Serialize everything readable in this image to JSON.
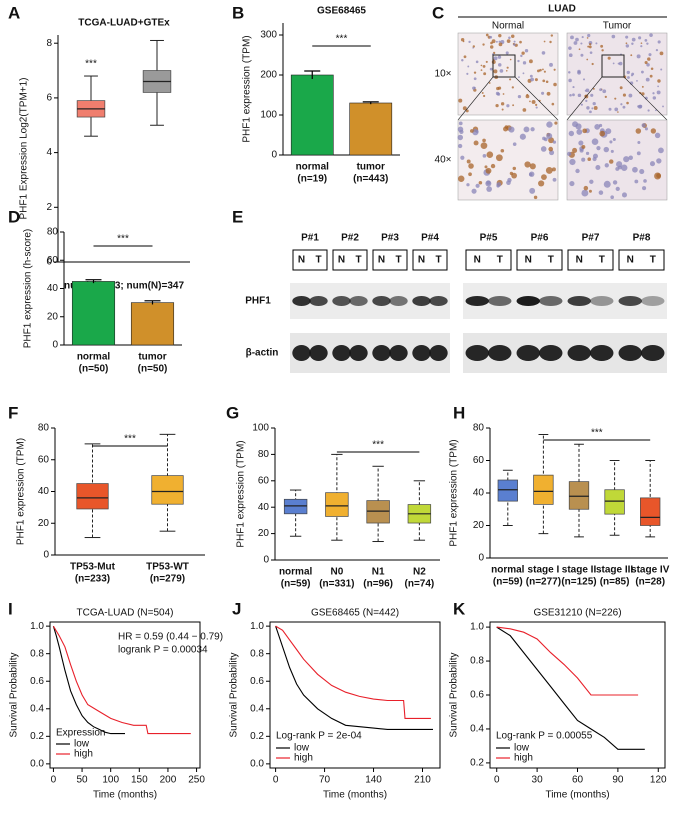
{
  "chart_data": [
    {
      "panel": "A",
      "type": "box",
      "title": "TCGA-LUAD+GTEx",
      "ylabel": "PHF1 Expression Log2(TPM+1)",
      "xlabel": "num(T)=483; num(N)=347",
      "categories": [
        null,
        null
      ],
      "boxes": [
        {
          "min": 4.6,
          "q1": 5.3,
          "median": 5.6,
          "q3": 5.9,
          "max": 6.8
        },
        {
          "min": 5.0,
          "q1": 6.2,
          "median": 6.6,
          "q3": 7.0,
          "max": 8.1
        }
      ],
      "colors": [
        "#f07e6e",
        "#9a9a9a"
      ],
      "dashed_whiskers": false,
      "ylim": [
        0,
        8.3
      ],
      "yticks": [
        0,
        2,
        4,
        6,
        8
      ],
      "significance": "***",
      "significance_span": [
        0
      ]
    },
    {
      "panel": "B",
      "type": "bar",
      "title": "GSE68465",
      "ylabel": "PHF1 expression (TPM)",
      "categories": [
        "normal",
        "tumor"
      ],
      "category_notes": [
        "(n=19)",
        "(n=443)"
      ],
      "values": [
        200,
        130
      ],
      "errors": [
        10,
        3
      ],
      "colors": [
        "#1aa84a",
        "#d0902a"
      ],
      "ylim": [
        0,
        330
      ],
      "yticks": [
        0,
        100,
        200,
        300
      ],
      "significance": "***",
      "significance_span": [
        0,
        1
      ]
    },
    {
      "panel": "D",
      "type": "bar",
      "ylabel": "PHF1 expression (h-score)",
      "categories": [
        "normal",
        "tumor"
      ],
      "category_notes": [
        "(n=50)",
        "(n=50)"
      ],
      "values": [
        45,
        30
      ],
      "errors": [
        1.2,
        1.3
      ],
      "colors": [
        "#1aa84a",
        "#d0902a"
      ],
      "ylim": [
        0,
        80
      ],
      "yticks": [
        0,
        20,
        40,
        60,
        80
      ],
      "significance": "***",
      "significance_span": [
        0,
        1
      ]
    },
    {
      "panel": "F",
      "type": "box",
      "ylabel": "PHF1 expression (TPM)",
      "categories": [
        "TP53-Mut",
        "TP53-WT"
      ],
      "category_notes": [
        "(n=233)",
        "(n=279)"
      ],
      "boxes": [
        {
          "min": 11,
          "q1": 29,
          "median": 36,
          "q3": 45,
          "max": 70
        },
        {
          "min": 15,
          "q1": 32,
          "median": 40,
          "q3": 50,
          "max": 76
        }
      ],
      "colors": [
        "#e8562a",
        "#f0b030"
      ],
      "dashed_whiskers": true,
      "ylim": [
        0,
        80
      ],
      "yticks": [
        0,
        20,
        40,
        60,
        80
      ],
      "significance": "***",
      "significance_span": [
        0,
        1
      ]
    },
    {
      "panel": "G",
      "type": "box",
      "ylabel": "PHF1 expression (TPM)",
      "categories": [
        "normal",
        "N0",
        "N1",
        "N2"
      ],
      "category_notes": [
        "(n=59)",
        "(n=331)",
        "(n=96)",
        "(n=74)"
      ],
      "boxes": [
        {
          "min": 18,
          "q1": 35,
          "median": 41,
          "q3": 46,
          "max": 53
        },
        {
          "min": 15,
          "q1": 33,
          "median": 41,
          "q3": 51,
          "max": 80
        },
        {
          "min": 14,
          "q1": 28,
          "median": 37,
          "q3": 45,
          "max": 71
        },
        {
          "min": 15,
          "q1": 28,
          "median": 35,
          "q3": 42,
          "max": 60
        }
      ],
      "colors": [
        "#5a7fd0",
        "#f0b030",
        "#b99050",
        "#c0d838"
      ],
      "dashed_whiskers": true,
      "ylim": [
        0,
        100
      ],
      "yticks": [
        0,
        20,
        40,
        60,
        80,
        100
      ],
      "significance": "***",
      "significance_span": [
        1,
        3
      ]
    },
    {
      "panel": "H",
      "type": "box",
      "ylabel": "PHF1 expression (TPM)",
      "categories": [
        "normal",
        "stage I",
        "stage II",
        "stage III",
        "stage IV"
      ],
      "category_notes": [
        "(n=59)",
        "(n=277)",
        "(n=125)",
        "(n=85)",
        "(n=28)"
      ],
      "boxes": [
        {
          "min": 20,
          "q1": 35,
          "median": 42,
          "q3": 48,
          "max": 54
        },
        {
          "min": 15,
          "q1": 33,
          "median": 41,
          "q3": 51,
          "max": 76
        },
        {
          "min": 13,
          "q1": 30,
          "median": 38,
          "q3": 47,
          "max": 70
        },
        {
          "min": 14,
          "q1": 27,
          "median": 35,
          "q3": 42,
          "max": 60
        },
        {
          "min": 13,
          "q1": 20,
          "median": 25,
          "q3": 37,
          "max": 60
        }
      ],
      "colors": [
        "#5a7fd0",
        "#f0b030",
        "#b99050",
        "#c0d838",
        "#e8562a"
      ],
      "dashed_whiskers": true,
      "ylim": [
        0,
        80
      ],
      "yticks": [
        0,
        20,
        40,
        60,
        80
      ],
      "significance": "***",
      "significance_span": [
        1,
        4
      ]
    },
    {
      "panel": "I",
      "type": "survival",
      "title": "TCGA-LUAD (N=504)",
      "ylabel": "Survival Probability",
      "xlabel": "Time (months)",
      "legend_title": "Expression",
      "annotations": [
        "HR = 0.59 (0.44 − 0.79)",
        "logrank P = 0.00034"
      ],
      "series": [
        {
          "name": "low",
          "color": "#000000",
          "x": [
            0,
            5,
            10,
            20,
            30,
            40,
            50,
            60,
            70,
            80,
            90,
            100,
            110,
            125
          ],
          "y": [
            1,
            0.93,
            0.85,
            0.68,
            0.53,
            0.43,
            0.35,
            0.3,
            0.27,
            0.25,
            0.23,
            0.22,
            0.22,
            0.22
          ]
        },
        {
          "name": "high",
          "color": "#e8202a",
          "x": [
            0,
            10,
            20,
            30,
            40,
            50,
            60,
            80,
            100,
            120,
            140,
            162,
            165,
            240
          ],
          "y": [
            1,
            0.93,
            0.85,
            0.72,
            0.6,
            0.5,
            0.43,
            0.38,
            0.33,
            0.3,
            0.28,
            0.28,
            0.22,
            0.22
          ]
        }
      ],
      "xlim": [
        -6,
        256
      ],
      "xticks": [
        0,
        50,
        100,
        150,
        200,
        250
      ],
      "ylim": [
        -0.03,
        1.03
      ],
      "yticks": [
        {
          "value": 0,
          "label": "0.0"
        },
        0.2,
        0.4,
        0.6,
        0.8,
        {
          "value": 1,
          "label": "1.0"
        }
      ]
    },
    {
      "panel": "J",
      "type": "survival",
      "title": "GSE68465 (N=442)",
      "ylabel": "Survival Probability",
      "xlabel": "Time (months)",
      "annotations": [
        "Log-rank P = 2e-04"
      ],
      "series": [
        {
          "name": "low",
          "color": "#000000",
          "x": [
            0,
            10,
            20,
            30,
            40,
            60,
            80,
            100,
            120,
            140,
            160,
            180,
            225
          ],
          "y": [
            1,
            0.85,
            0.7,
            0.58,
            0.5,
            0.4,
            0.33,
            0.28,
            0.27,
            0.26,
            0.25,
            0.25,
            0.25
          ]
        },
        {
          "name": "high",
          "color": "#e8202a",
          "x": [
            0,
            10,
            20,
            30,
            40,
            60,
            80,
            100,
            120,
            140,
            160,
            183,
            185,
            222
          ],
          "y": [
            1,
            0.97,
            0.9,
            0.83,
            0.76,
            0.65,
            0.57,
            0.52,
            0.49,
            0.47,
            0.46,
            0.46,
            0.33,
            0.33
          ]
        }
      ],
      "xlim": [
        -8,
        235
      ],
      "xticks": [
        0,
        70,
        140,
        210
      ],
      "ylim": [
        -0.03,
        1.03
      ],
      "yticks": [
        {
          "value": 0,
          "label": "0.0"
        },
        0.2,
        0.4,
        0.6,
        0.8,
        {
          "value": 1,
          "label": "1.0"
        }
      ]
    },
    {
      "panel": "K",
      "type": "survival",
      "title": "GSE31210 (N=226)",
      "ylabel": "Survival Probability",
      "xlabel": "Time (months)",
      "annotations": [
        "Log-rank P = 0.00055"
      ],
      "series": [
        {
          "name": "low",
          "color": "#000000",
          "x": [
            0,
            10,
            20,
            30,
            40,
            50,
            60,
            70,
            80,
            90,
            110
          ],
          "y": [
            1,
            0.95,
            0.85,
            0.75,
            0.65,
            0.55,
            0.45,
            0.4,
            0.35,
            0.28,
            0.28
          ]
        },
        {
          "name": "high",
          "color": "#e8202a",
          "x": [
            0,
            10,
            20,
            30,
            40,
            50,
            60,
            70,
            105
          ],
          "y": [
            1,
            0.99,
            0.97,
            0.93,
            0.85,
            0.78,
            0.7,
            0.6,
            0.6
          ]
        }
      ],
      "xlim": [
        -5,
        125
      ],
      "xticks": [
        0,
        30,
        60,
        90,
        120
      ],
      "ylim": [
        0.17,
        1.03
      ],
      "yticks": [
        0.2,
        0.4,
        0.6,
        0.8,
        {
          "value": 1,
          "label": "1.0"
        }
      ]
    }
  ],
  "ihc": {
    "panel": "C",
    "title": "LUAD",
    "columns": [
      "Normal",
      "Tumor"
    ],
    "rows": [
      "10×",
      "40×"
    ]
  },
  "western_blot": {
    "panel": "E",
    "patients": [
      "P#1",
      "P#2",
      "P#3",
      "P#4",
      "P#5",
      "P#6",
      "P#7",
      "P#8"
    ],
    "lanes": [
      "N",
      "T"
    ],
    "proteins": [
      "PHF1",
      "β-actin"
    ]
  }
}
